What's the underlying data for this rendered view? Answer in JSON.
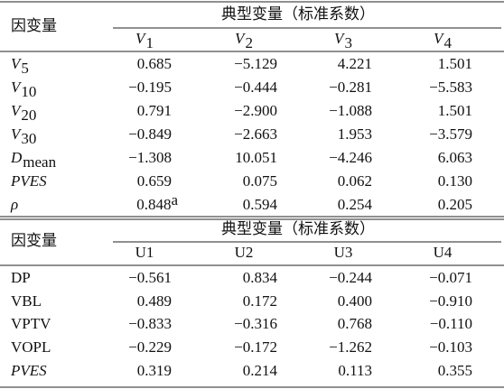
{
  "top": {
    "row_header": "因变量",
    "group_header": "典型变量（标准系数）",
    "columns": [
      {
        "base": "V",
        "sub": "1"
      },
      {
        "base": "V",
        "sub": "2"
      },
      {
        "base": "V",
        "sub": "3"
      },
      {
        "base": "V",
        "sub": "4"
      }
    ],
    "rows": [
      {
        "label": {
          "base": "V",
          "sub": "5"
        },
        "italic": true,
        "values": [
          "0.685",
          "−5.129",
          "4.221",
          "1.501"
        ]
      },
      {
        "label": {
          "base": "V",
          "sub": "10"
        },
        "italic": true,
        "values": [
          "−0.195",
          "−0.444",
          "−0.281",
          "−5.583"
        ]
      },
      {
        "label": {
          "base": "V",
          "sub": "20"
        },
        "italic": true,
        "values": [
          "0.791",
          "−2.900",
          "−1.088",
          "1.501"
        ]
      },
      {
        "label": {
          "base": "V",
          "sub": "30"
        },
        "italic": true,
        "values": [
          "−0.849",
          "−2.663",
          "1.953",
          "−3.579"
        ]
      },
      {
        "label": {
          "base": "D",
          "sub": "mean"
        },
        "italic": true,
        "values": [
          "−1.308",
          "10.051",
          "−4.246",
          "6.063"
        ]
      },
      {
        "label": {
          "base": "PVES"
        },
        "italic": true,
        "values": [
          "0.659",
          "0.075",
          "0.062",
          "0.130"
        ]
      },
      {
        "label": {
          "base": "ρ"
        },
        "italic": true,
        "values": [
          "0.848",
          "0.594",
          "0.254",
          "0.205"
        ],
        "footnote_mark": "a"
      }
    ]
  },
  "bottom": {
    "row_header": "因变量",
    "group_header": "典型变量（标准系数）",
    "columns": [
      {
        "base": "U1"
      },
      {
        "base": "U2"
      },
      {
        "base": "U3"
      },
      {
        "base": "U4"
      }
    ],
    "rows": [
      {
        "label": {
          "base": "DP"
        },
        "italic": false,
        "values": [
          "−0.561",
          "0.834",
          "−0.244",
          "−0.071"
        ]
      },
      {
        "label": {
          "base": "VBL"
        },
        "italic": false,
        "values": [
          "0.489",
          "0.172",
          "0.400",
          "−0.910"
        ]
      },
      {
        "label": {
          "base": "VPTV"
        },
        "italic": false,
        "values": [
          "−0.833",
          "−0.316",
          "0.768",
          "−0.110"
        ]
      },
      {
        "label": {
          "base": "VOPL"
        },
        "italic": false,
        "values": [
          "−0.229",
          "−0.172",
          "−1.262",
          "−0.103"
        ]
      },
      {
        "label": {
          "base": "PVES"
        },
        "italic": true,
        "values": [
          "0.319",
          "0.214",
          "0.113",
          "0.355"
        ]
      }
    ]
  }
}
